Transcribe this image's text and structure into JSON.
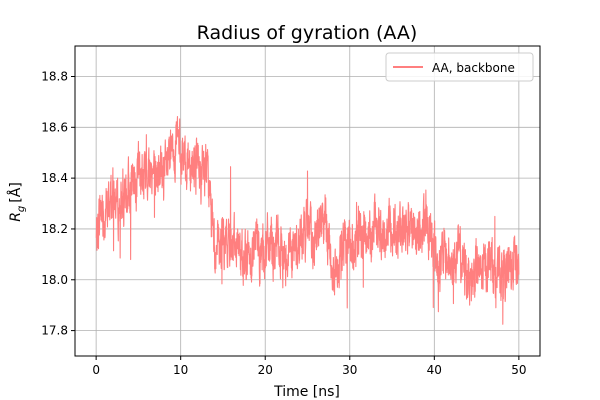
{
  "chart_data": {
    "type": "line",
    "title": "Radius of gyration (AA)",
    "xlabel": "Time [ns]",
    "ylabel_main": "R",
    "ylabel_sub": "g",
    "ylabel_unit": "[Å]",
    "xlim": [
      -2.5,
      52.5
    ],
    "ylim": [
      17.7,
      18.92
    ],
    "xticks": [
      0,
      10,
      20,
      30,
      40,
      50
    ],
    "yticks": [
      17.8,
      18.0,
      18.2,
      18.4,
      18.6,
      18.8
    ],
    "ytick_labels": [
      "17.8",
      "18.0",
      "18.2",
      "18.4",
      "18.6",
      "18.8"
    ],
    "grid": true,
    "legend_position": "top-right",
    "series": [
      {
        "name": "AA, backbone",
        "color": "#ff7f7f",
        "x": [
          0,
          0.5,
          1,
          1.5,
          2,
          2.5,
          3,
          3.5,
          4,
          4.5,
          5,
          5.5,
          6,
          6.5,
          7,
          7.5,
          8,
          8.5,
          9,
          9.5,
          10,
          10.5,
          11,
          11.5,
          12,
          12.5,
          13,
          13.5,
          14,
          14.5,
          15,
          15.5,
          16,
          16.5,
          17,
          17.5,
          18,
          18.5,
          19,
          19.5,
          20,
          20.5,
          21,
          21.5,
          22,
          22.5,
          23,
          23.5,
          24,
          24.5,
          25,
          25.5,
          26,
          26.5,
          27,
          27.5,
          28,
          28.5,
          29,
          29.5,
          30,
          30.5,
          31,
          31.5,
          32,
          32.5,
          33,
          33.5,
          34,
          34.5,
          35,
          35.5,
          36,
          36.5,
          37,
          37.5,
          38,
          38.5,
          39,
          39.5,
          40,
          40.5,
          41,
          41.5,
          42,
          42.5,
          43,
          43.5,
          44,
          44.5,
          45,
          45.5,
          46,
          46.5,
          47,
          47.5,
          48,
          48.5,
          49,
          49.5,
          50
        ],
        "y": [
          18.15,
          18.28,
          18.25,
          18.3,
          18.33,
          18.3,
          18.28,
          18.3,
          18.38,
          18.35,
          18.45,
          18.4,
          18.42,
          18.44,
          18.4,
          18.42,
          18.4,
          18.45,
          18.5,
          18.55,
          18.5,
          18.45,
          18.48,
          18.46,
          18.45,
          18.42,
          18.45,
          18.3,
          18.12,
          18.1,
          18.15,
          18.12,
          18.18,
          18.15,
          18.12,
          18.1,
          18.08,
          18.12,
          18.15,
          18.1,
          18.12,
          18.15,
          18.1,
          18.15,
          18.08,
          18.1,
          18.15,
          18.12,
          18.15,
          18.18,
          18.2,
          18.15,
          18.18,
          18.22,
          18.25,
          18.15,
          18.05,
          18.08,
          18.1,
          18.12,
          18.15,
          18.1,
          18.12,
          18.2,
          18.18,
          18.2,
          18.22,
          18.2,
          18.18,
          18.2,
          18.22,
          18.2,
          18.18,
          18.2,
          18.22,
          18.2,
          18.2,
          18.18,
          18.22,
          18.2,
          18.12,
          18.05,
          18.1,
          18.08,
          18.05,
          18.08,
          18.1,
          18.05,
          18.02,
          18.0,
          18.05,
          18.02,
          18.05,
          18.08,
          18.05,
          18.0,
          18.05,
          18.02,
          18.05,
          18.08,
          18.05
        ]
      }
    ]
  }
}
